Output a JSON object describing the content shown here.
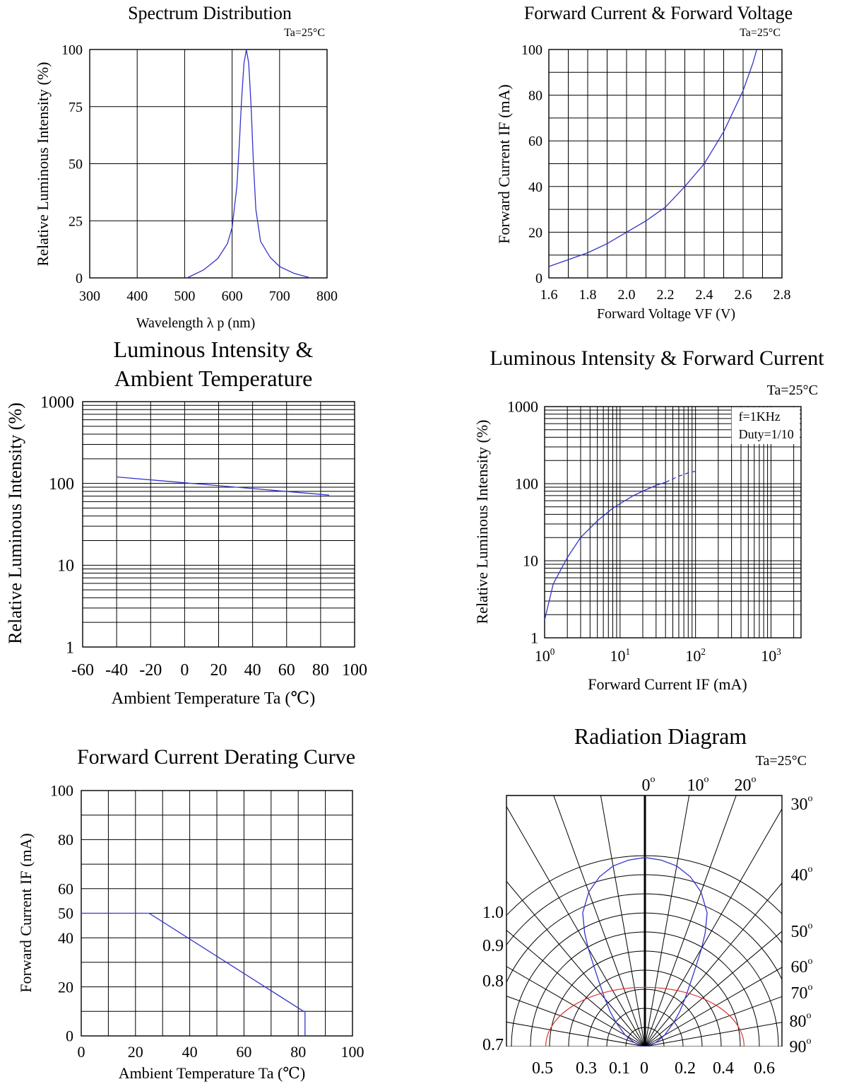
{
  "chart_data": [
    {
      "type": "line",
      "title": "Spectrum Distribution",
      "note": "Ta=25°C",
      "xlabel": "Wavelength  λ p (nm)",
      "ylabel": "Relative Luminous Intensity (%)",
      "xlim": [
        300,
        800
      ],
      "ylim": [
        0,
        100
      ],
      "xticks": [
        "300",
        "400",
        "500",
        "600",
        "700",
        "800"
      ],
      "yticks": [
        "0",
        "25",
        "50",
        "75",
        "100"
      ],
      "grid": true,
      "series": [
        {
          "color": "#3333cc",
          "x": [
            505,
            540,
            570,
            590,
            600,
            610,
            615,
            620,
            625,
            630,
            635,
            640,
            645,
            650,
            660,
            680,
            700,
            730,
            765
          ],
          "y": [
            0,
            3.5,
            8.5,
            15,
            22,
            40,
            58,
            78,
            94,
            100,
            94,
            75,
            50,
            30,
            16,
            9,
            5,
            2,
            0
          ]
        }
      ]
    },
    {
      "type": "line",
      "title": "Forward Current & Forward Voltage",
      "note": "Ta=25°C",
      "xlabel": "Forward Voltage  VF (V)",
      "ylabel": "Forward Current IF (mA)",
      "xlim": [
        1.6,
        2.8
      ],
      "ylim": [
        0,
        100
      ],
      "xticks": [
        "1.6",
        "1.8",
        "2.0",
        "2.2",
        "2.4",
        "2.6",
        "2.8"
      ],
      "yticks": [
        "0",
        "20",
        "40",
        "60",
        "80",
        "100"
      ],
      "grid": true,
      "series": [
        {
          "color": "#3333cc",
          "x": [
            1.6,
            1.7,
            1.8,
            1.9,
            2.0,
            2.1,
            2.2,
            2.3,
            2.4,
            2.5,
            2.6,
            2.65,
            2.67
          ],
          "y": [
            5,
            8,
            11,
            15,
            20,
            25,
            31,
            40,
            50,
            64,
            82,
            94,
            100
          ]
        }
      ]
    },
    {
      "type": "line",
      "title": "Luminous Intensity & Ambient Temperature",
      "title_lines": [
        "Luminous Intensity &",
        "Ambient Temperature"
      ],
      "xlabel": "Ambient Temperature Ta (℃)",
      "ylabel": "Relative Luminous Intensity (%)",
      "xlim": [
        -60,
        100
      ],
      "ylim": [
        1,
        1000
      ],
      "yscale": "log",
      "xticks": [
        "-60",
        "-40",
        "-20",
        "0",
        "20",
        "40",
        "60",
        "80",
        "100"
      ],
      "yticks": [
        "1",
        "10",
        "100",
        "1000"
      ],
      "grid": true,
      "series": [
        {
          "color": "#3333cc",
          "x": [
            -40,
            85
          ],
          "y": [
            120,
            72
          ]
        }
      ]
    },
    {
      "type": "line",
      "title": "Luminous Intensity & Forward Current",
      "note": "Ta=25°C",
      "annotations": [
        "f=1KHz",
        "Duty=1/10"
      ],
      "xlabel": "Forward Current IF (mA)",
      "ylabel": "Relative Luminous Intensity (%)",
      "xscale": "log",
      "yscale": "log",
      "xlim": [
        1,
        2500
      ],
      "ylim": [
        1,
        1000
      ],
      "xticks": [
        {
          "base": "10",
          "exp": "0"
        },
        {
          "base": "10",
          "exp": "1"
        },
        {
          "base": "10",
          "exp": "2"
        },
        {
          "base": "10",
          "exp": "3"
        }
      ],
      "yticks": [
        "1",
        "10",
        "100",
        "1000"
      ],
      "grid": true,
      "series": [
        {
          "color": "#3333cc",
          "style": "solid",
          "x": [
            1,
            1.3,
            2,
            3,
            5,
            8,
            10,
            15,
            20,
            30,
            40
          ],
          "y": [
            1.7,
            5,
            11,
            20,
            33,
            48,
            55,
            70,
            80,
            95,
            104
          ]
        },
        {
          "color": "#3333cc",
          "style": "dashed",
          "x": [
            40,
            60,
            80,
            100
          ],
          "y": [
            104,
            125,
            138,
            145
          ]
        }
      ]
    },
    {
      "type": "line",
      "title": "Forward Current Derating Curve",
      "xlabel": "Ambient Temperature Ta (℃)",
      "ylabel": "Forward Current IF (mA)",
      "xlim": [
        0,
        100
      ],
      "ylim": [
        0,
        100
      ],
      "xticks": [
        "0",
        "20",
        "40",
        "60",
        "80",
        "100"
      ],
      "yticks": [
        "0",
        "20",
        "40",
        "50",
        "60",
        "80",
        "100"
      ],
      "grid": true,
      "series": [
        {
          "color": "#3333cc",
          "x": [
            0,
            25,
            82,
            82.5,
            82.5
          ],
          "y": [
            50,
            50,
            10,
            10,
            0
          ]
        }
      ]
    },
    {
      "type": "polar",
      "title": "Radiation Diagram",
      "note": "Ta=25°C",
      "angle_labels": [
        "0",
        "10",
        "20",
        "30",
        "40",
        "50",
        "60",
        "70",
        "80",
        "90"
      ],
      "left_labels": [
        "1.0",
        "0.9",
        "0.8",
        "0.7"
      ],
      "bottom_labels": [
        "0.5",
        "0.3",
        "0.1",
        "0",
        "0.2",
        "0.4",
        "0.6"
      ],
      "series": [
        {
          "color": "#3333cc",
          "angle_deg": [
            0,
            5,
            10,
            15,
            20,
            25,
            28,
            30,
            32,
            35,
            40,
            45,
            50,
            60,
            70,
            80,
            90
          ],
          "r": [
            1.0,
            0.99,
            0.97,
            0.93,
            0.87,
            0.78,
            0.68,
            0.6,
            0.52,
            0.43,
            0.33,
            0.26,
            0.2,
            0.12,
            0.06,
            0.02,
            0
          ]
        },
        {
          "color": "#dd3333",
          "angle_deg": [
            -90,
            -60,
            -30,
            0,
            30,
            60,
            90
          ],
          "r": [
            0.5,
            0.5,
            0.5,
            0.5,
            0.5,
            0.5,
            0.5
          ]
        }
      ]
    }
  ]
}
